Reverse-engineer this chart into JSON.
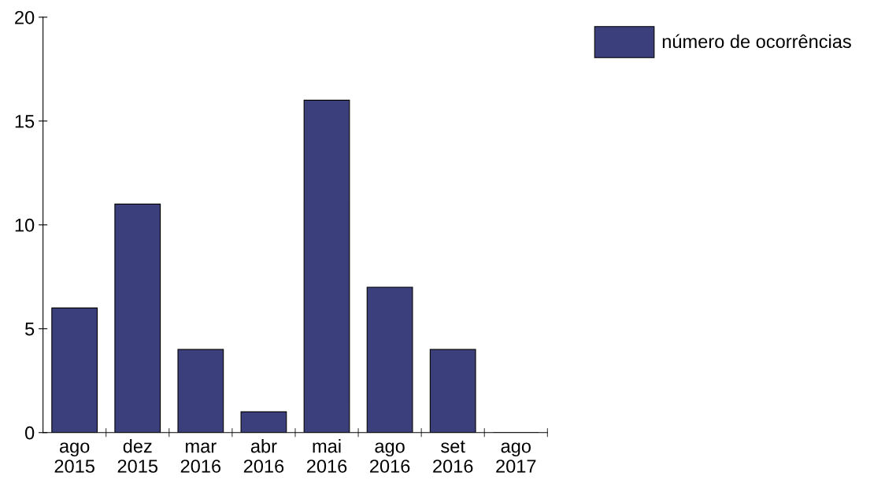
{
  "chart_data": {
    "type": "bar",
    "categories": [
      "ago\n2015",
      "dez\n2015",
      "mar\n2016",
      "abr\n2016",
      "mai\n2016",
      "ago\n2016",
      "set\n2016",
      "ago\n2017"
    ],
    "series": [
      {
        "name": "número de ocorrências",
        "color": "#3b3f7c",
        "values": [
          6,
          11,
          4,
          1,
          16,
          7,
          4,
          0
        ]
      }
    ],
    "ylim": [
      0,
      20
    ],
    "yticks": [
      0,
      5,
      10,
      15,
      20
    ],
    "grid": false,
    "legend": "top right"
  }
}
